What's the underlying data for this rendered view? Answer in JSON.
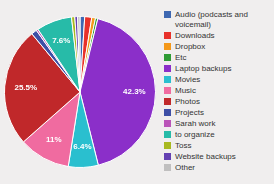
{
  "chart_data": {
    "type": "pie",
    "categories": [
      "Audio (podcasts and\nvoicemail)",
      "Downloads",
      "Dropbox",
      "Etc",
      "Laptop backups",
      "Movies",
      "Music",
      "Photos",
      "Projects",
      "Sarah work",
      "to organize",
      "Toss",
      "Website backups",
      "Other"
    ],
    "values": [
      1.0,
      1.5,
      0.8,
      0.5,
      42.3,
      6.4,
      11.0,
      25.5,
      1.2,
      0.4,
      7.6,
      0.7,
      0.6,
      0.5
    ],
    "value_labels": [
      null,
      null,
      null,
      null,
      "42.3%",
      "6.4%",
      "11%",
      "25.5%",
      null,
      null,
      "7.6%",
      null,
      null,
      null
    ],
    "colors": [
      "#3E67B1",
      "#E8312A",
      "#F4981A",
      "#2E9B34",
      "#8B2FC9",
      "#2ABFCF",
      "#F06BA0",
      "#C0282A",
      "#3E4FA6",
      "#BA54B8",
      "#27BBA8",
      "#A8B820",
      "#6440B2",
      "#C0BFBF"
    ],
    "data_labels": true,
    "legend": "right"
  }
}
